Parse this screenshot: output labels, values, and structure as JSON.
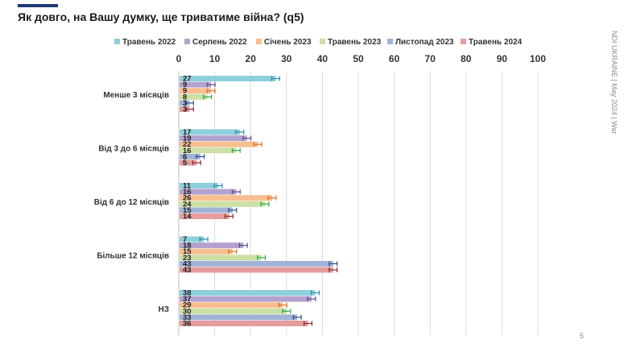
{
  "page": {
    "title": "Як довго, на Вашу думку, ще триватиме війна? (q5)",
    "side_note": "NDI UKRAINE | May 2024 | War",
    "page_number": "5"
  },
  "chart_data": {
    "type": "bar",
    "orientation": "horizontal",
    "title": "Як довго, на Вашу думку, ще триватиме війна? (q5)",
    "categories": [
      "Менше 3 місяців",
      "Від 3 до 6 місяців",
      "Від 6 до 12 місяців",
      "Більше 12 місяців",
      "НЗ"
    ],
    "series": [
      {
        "name": "Травень 2022",
        "color": "#8ecfdc",
        "err_color": "#2a8fa6",
        "values": [
          27,
          17,
          11,
          7,
          38
        ]
      },
      {
        "name": "Серпень 2022",
        "color": "#b3a2cf",
        "err_color": "#5e4a8b",
        "values": [
          9,
          19,
          16,
          18,
          37
        ]
      },
      {
        "name": "Січень 2023",
        "color": "#f7be90",
        "err_color": "#e2701e",
        "values": [
          9,
          22,
          26,
          15,
          29
        ]
      },
      {
        "name": "Травень 2023",
        "color": "#cbe0a4",
        "err_color": "#27a844",
        "values": [
          8,
          16,
          24,
          23,
          30
        ]
      },
      {
        "name": "Листопад 2023",
        "color": "#9fb3d6",
        "err_color": "#2c4f86",
        "values": [
          3,
          6,
          15,
          43,
          33
        ]
      },
      {
        "name": "Травень 2024",
        "color": "#e49c9c",
        "err_color": "#8e2b2b",
        "values": [
          3,
          5,
          14,
          43,
          36
        ]
      }
    ],
    "x_ticks": [
      0,
      10,
      20,
      30,
      40,
      50,
      60,
      70,
      80,
      90,
      100
    ],
    "xlim": [
      0,
      100
    ],
    "legend_position": "top",
    "grid": "vertical",
    "error_bars": true
  }
}
